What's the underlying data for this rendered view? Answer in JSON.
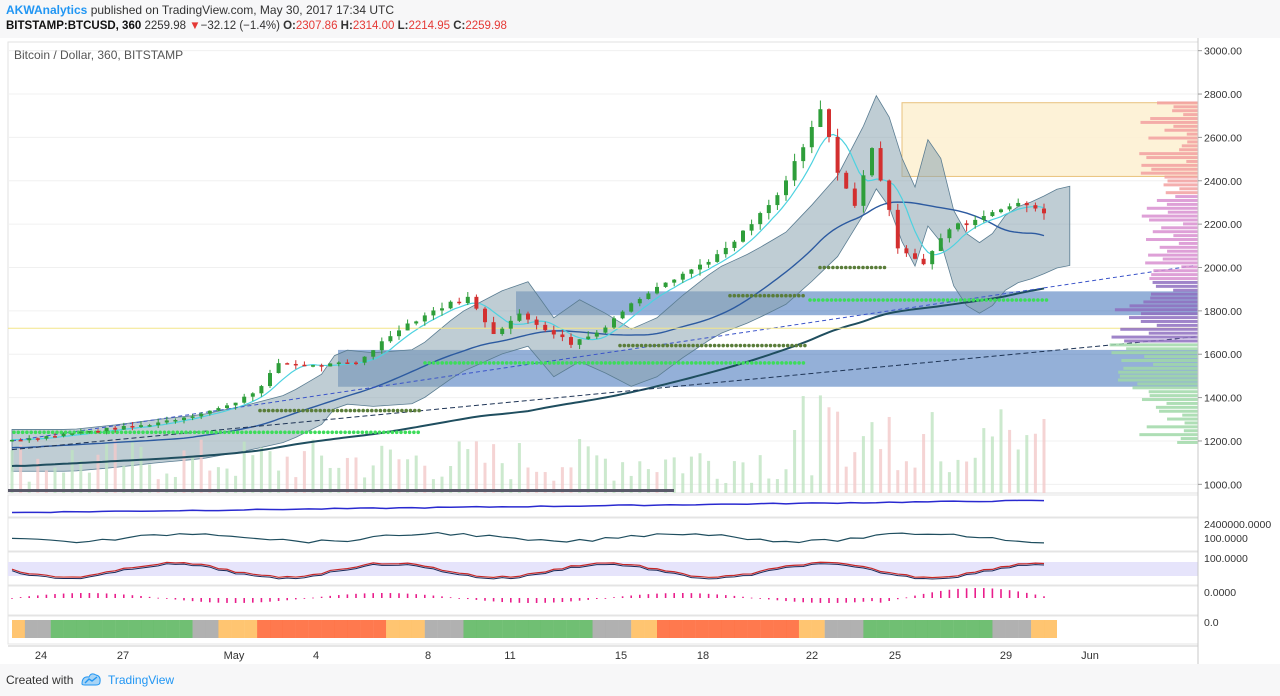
{
  "header": {
    "author": "AKWAnalytics",
    "published_text": "published on TradingView.com, May 30, 2017 17:34 UTC",
    "symbol": "BITSTAMP:BTCUSD, 360",
    "last": "2259.98",
    "change_arrow": "▼",
    "change": "−32.12 (−1.4%)",
    "o_label": "O:",
    "o_value": "2307.86",
    "h_label": "H:",
    "h_value": "2314.00",
    "l_label": "L:",
    "l_value": "2214.95",
    "c_label": "C:",
    "c_value": "2259.98"
  },
  "chart_title": "Bitcoin / Dollar, 360, BITSTAMP",
  "footer": {
    "created_with": "Created with",
    "brand": "TradingView"
  },
  "colors": {
    "up": "#2e9e3a",
    "down": "#d32f2f",
    "accent": "#2196f3",
    "cloud": "#8aa4b0",
    "zone": "#3d6fb8"
  },
  "chart_data": {
    "type": "candlestick",
    "title": "Bitcoin / Dollar, 360, BITSTAMP",
    "ylim": [
      960,
      3040
    ],
    "y_ticks": [
      1000,
      1200,
      1400,
      1600,
      1800,
      2000,
      2200,
      2400,
      2600,
      2800,
      3000
    ],
    "y_tick_labels": [
      "1000.00",
      "1200.00",
      "1400.00",
      "1600.00",
      "1800.00",
      "2000.00",
      "2200.00",
      "2400.00",
      "2600.00",
      "2800.00",
      "3000.00"
    ],
    "x_tick_labels": [
      "24",
      "27",
      "May",
      "4",
      "8",
      "11",
      "15",
      "18",
      "22",
      "25",
      "29",
      "Jun"
    ],
    "price_key_points": [
      [
        0,
        1205
      ],
      [
        10,
        1225
      ],
      [
        20,
        1250
      ],
      [
        30,
        1270
      ],
      [
        40,
        1310
      ],
      [
        50,
        1360
      ],
      [
        58,
        1450
      ],
      [
        62,
        1560
      ],
      [
        70,
        1545
      ],
      [
        80,
        1560
      ],
      [
        90,
        1720
      ],
      [
        100,
        1820
      ],
      [
        106,
        1860
      ],
      [
        112,
        1700
      ],
      [
        118,
        1780
      ],
      [
        124,
        1720
      ],
      [
        130,
        1650
      ],
      [
        136,
        1700
      ],
      [
        142,
        1800
      ],
      [
        150,
        1920
      ],
      [
        158,
        1990
      ],
      [
        166,
        2080
      ],
      [
        172,
        2200
      ],
      [
        178,
        2330
      ],
      [
        184,
        2550
      ],
      [
        188,
        2730
      ],
      [
        192,
        2450
      ],
      [
        196,
        2280
      ],
      [
        200,
        2560
      ],
      [
        206,
        2100
      ],
      [
        212,
        2020
      ],
      [
        218,
        2180
      ],
      [
        224,
        2220
      ],
      [
        230,
        2280
      ],
      [
        236,
        2290
      ],
      [
        240,
        2260
      ]
    ],
    "fib_zone": [
      2420,
      2760
    ],
    "demand_zones": [
      [
        1780,
        1890
      ],
      [
        1450,
        1620
      ]
    ],
    "sub_panes": [
      {
        "name": "obv",
        "labels": []
      },
      {
        "name": "momentum",
        "labels": [
          "2400000.0000",
          "100.0000"
        ]
      },
      {
        "name": "stoch_rsi",
        "labels": [
          "100.0000"
        ]
      },
      {
        "name": "histogram",
        "labels": [
          "0.0000"
        ]
      },
      {
        "name": "ribbon",
        "labels": [
          "0.0"
        ]
      }
    ]
  }
}
